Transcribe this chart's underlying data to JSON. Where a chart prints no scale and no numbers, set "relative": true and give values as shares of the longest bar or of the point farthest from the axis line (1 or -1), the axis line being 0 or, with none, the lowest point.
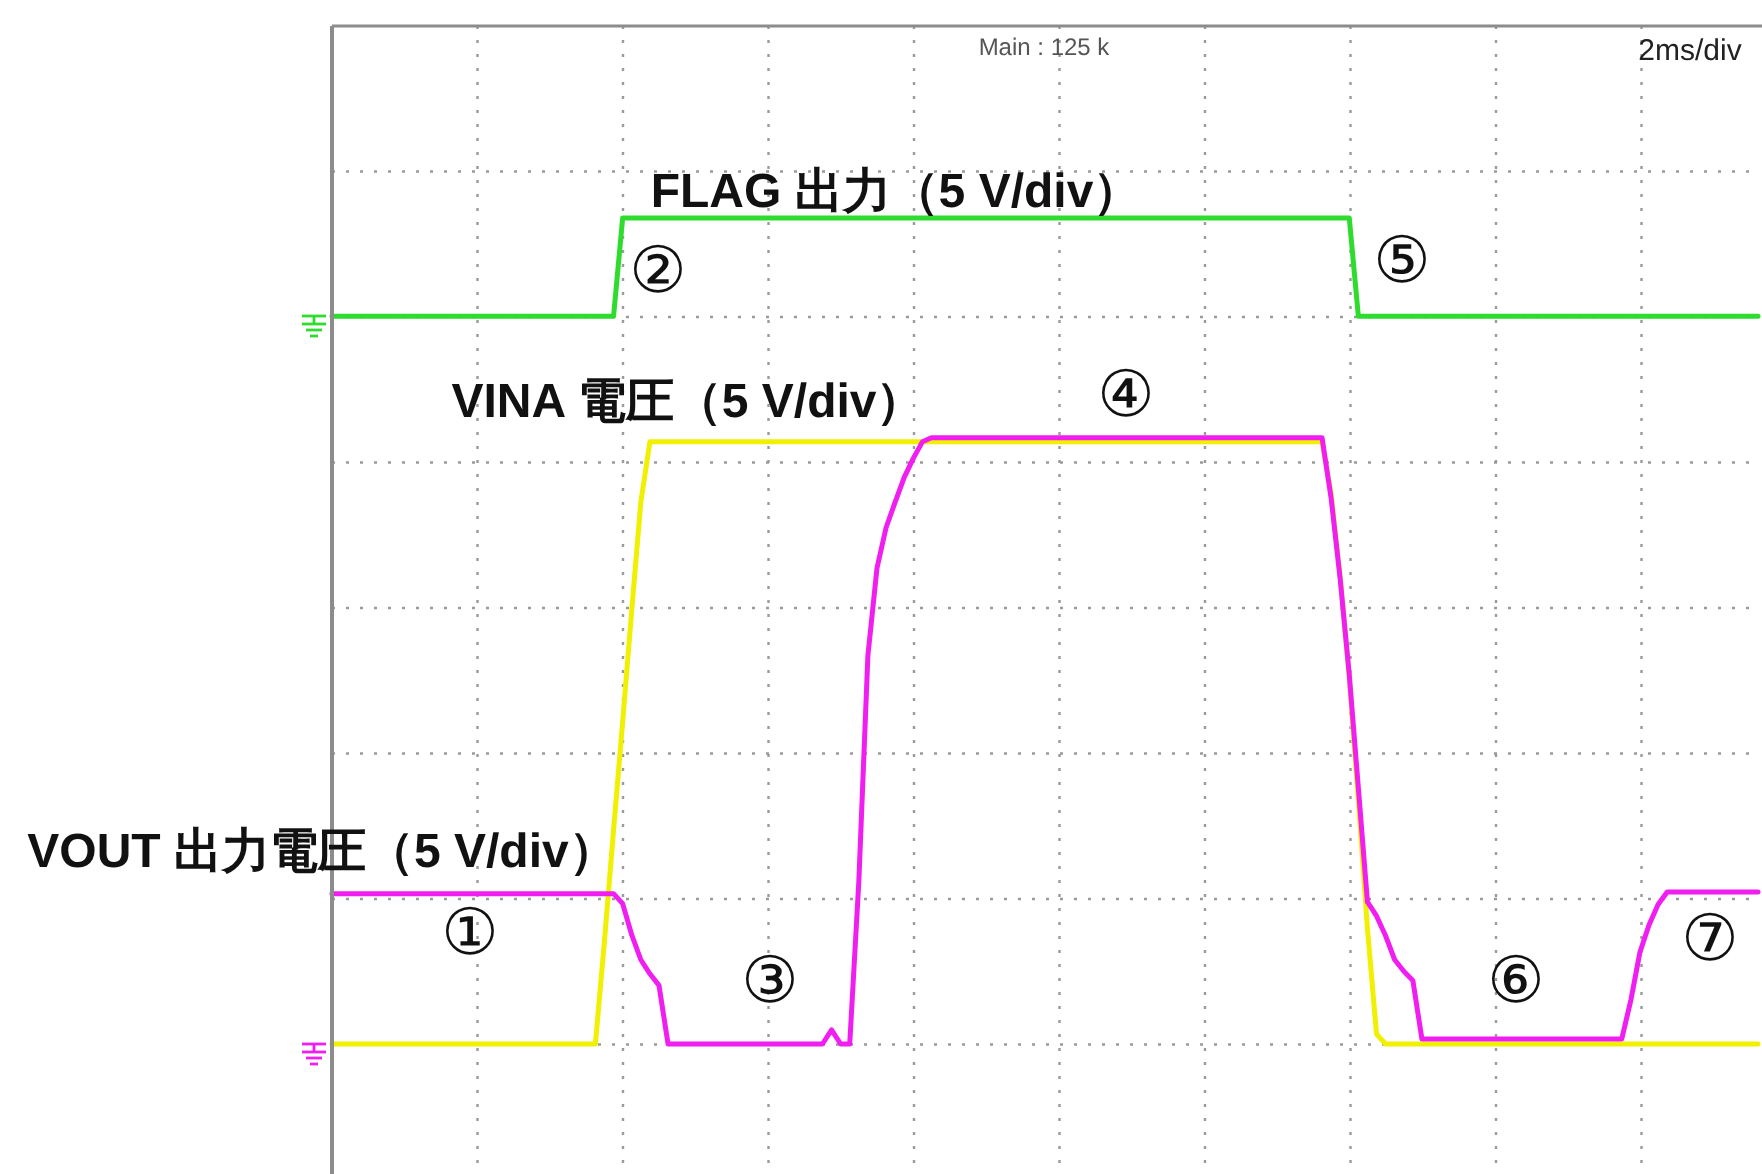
{
  "chart_data": {
    "type": "line",
    "relative": true,
    "grid": true,
    "tick_labels": false,
    "categories": [
      null,
      null,
      null,
      null,
      null,
      null,
      null,
      null,
      null,
      null,
      null,
      null,
      null,
      null,
      null,
      null,
      null,
      null,
      null,
      null,
      null,
      null,
      null,
      null,
      null,
      null,
      null,
      null,
      null,
      null,
      null,
      null,
      null,
      null,
      null,
      null,
      null,
      null,
      null,
      null,
      null,
      null,
      null,
      null,
      null,
      null,
      null,
      null,
      null,
      null,
      null,
      null,
      null,
      null,
      null,
      null,
      null,
      null,
      null,
      null,
      null,
      null,
      null,
      null,
      null,
      null,
      null,
      null,
      null,
      null,
      null,
      null,
      null,
      null,
      null,
      null,
      null,
      null,
      null,
      null,
      null,
      null,
      null,
      null,
      null,
      null,
      null,
      null,
      null,
      null,
      null,
      null,
      null,
      null,
      null,
      null,
      null,
      null,
      null,
      null,
      null,
      null,
      null,
      null,
      null,
      null,
      null,
      null,
      null,
      null,
      null,
      null,
      null,
      null,
      null,
      null,
      null,
      null,
      null,
      null,
      null,
      null,
      null,
      null,
      null,
      null,
      null,
      null,
      null,
      null,
      null,
      null,
      null,
      null,
      null,
      null,
      null,
      null,
      null,
      null,
      null,
      null,
      null,
      null,
      null,
      null,
      null,
      null,
      null,
      null,
      null,
      null,
      null,
      null,
      null,
      null,
      null,
      null
    ],
    "series": [
      {
        "name": "FLAG 出力（5 V/div）",
        "color": "#2edc2e",
        "values": [
          0.881,
          0.881,
          0.881,
          0.881,
          0.881,
          0.881,
          0.881,
          0.881,
          0.881,
          0.881,
          0.881,
          0.881,
          0.881,
          0.881,
          0.881,
          0.881,
          0.881,
          0.881,
          0.881,
          0.881,
          0.881,
          0.881,
          0.881,
          0.881,
          0.881,
          0.881,
          0.881,
          0.881,
          0.881,
          0.881,
          0.881,
          0.881,
          1,
          1,
          1,
          1,
          1,
          1,
          1,
          1,
          1,
          1,
          1,
          1,
          1,
          1,
          1,
          1,
          1,
          1,
          1,
          1,
          1,
          1,
          1,
          1,
          1,
          1,
          1,
          1,
          1,
          1,
          1,
          1,
          1,
          1,
          1,
          1,
          1,
          1,
          1,
          1,
          1,
          1,
          1,
          1,
          1,
          1,
          1,
          1,
          1,
          1,
          1,
          1,
          1,
          1,
          1,
          1,
          1,
          1,
          1,
          1,
          1,
          1,
          1,
          1,
          1,
          1,
          1,
          1,
          1,
          1,
          1,
          1,
          1,
          1,
          1,
          1,
          1,
          1,
          1,
          1,
          1,
          0.881,
          0.881,
          0.881,
          0.881,
          0.881,
          0.881,
          0.881,
          0.881,
          0.881,
          0.881,
          0.881,
          0.881,
          0.881,
          0.881,
          0.881,
          0.881,
          0.881,
          0.881,
          0.881,
          0.881,
          0.881,
          0.881,
          0.881,
          0.881,
          0.881,
          0.881,
          0.881,
          0.881,
          0.881,
          0.881,
          0.881,
          0.881,
          0.881,
          0.881,
          0.881,
          0.881,
          0.881,
          0.881,
          0.881,
          0.881,
          0.881,
          0.881,
          0.881,
          0.881,
          0.881
        ]
      },
      {
        "name": "VINA 電圧（5 V/div）",
        "color": "#f0f000",
        "values": [
          0,
          0,
          0,
          0,
          0,
          0,
          0,
          0,
          0,
          0,
          0,
          0,
          0,
          0,
          0,
          0,
          0,
          0,
          0,
          0,
          0,
          0,
          0,
          0,
          0,
          0,
          0,
          0,
          0,
          0,
          0.125,
          0.259,
          0.39,
          0.525,
          0.656,
          0.729,
          0.729,
          0.729,
          0.729,
          0.729,
          0.729,
          0.729,
          0.729,
          0.729,
          0.729,
          0.729,
          0.729,
          0.729,
          0.729,
          0.729,
          0.729,
          0.729,
          0.729,
          0.729,
          0.729,
          0.729,
          0.729,
          0.729,
          0.729,
          0.729,
          0.729,
          0.729,
          0.729,
          0.729,
          0.729,
          0.729,
          0.729,
          0.729,
          0.729,
          0.729,
          0.729,
          0.729,
          0.729,
          0.729,
          0.729,
          0.729,
          0.729,
          0.729,
          0.729,
          0.729,
          0.729,
          0.729,
          0.729,
          0.729,
          0.729,
          0.729,
          0.729,
          0.729,
          0.729,
          0.729,
          0.729,
          0.729,
          0.729,
          0.729,
          0.729,
          0.729,
          0.729,
          0.729,
          0.729,
          0.729,
          0.729,
          0.729,
          0.729,
          0.729,
          0.729,
          0.729,
          0.729,
          0.729,
          0.729,
          0.729,
          0.666,
          0.565,
          0.444,
          0.295,
          0.14,
          0.012,
          0,
          0,
          0,
          0,
          0,
          0,
          0,
          0,
          0,
          0,
          0,
          0,
          0,
          0,
          0,
          0,
          0,
          0,
          0,
          0,
          0,
          0,
          0,
          0,
          0,
          0,
          0,
          0,
          0,
          0,
          0,
          0,
          0,
          0,
          0,
          0,
          0,
          0,
          0,
          0,
          0,
          0
        ]
      },
      {
        "name": "VOUT 出力電圧（5 V/div）",
        "color": "#f01ef0",
        "values": [
          0.182,
          0.182,
          0.182,
          0.182,
          0.182,
          0.182,
          0.182,
          0.182,
          0.182,
          0.182,
          0.182,
          0.182,
          0.182,
          0.182,
          0.182,
          0.182,
          0.182,
          0.182,
          0.182,
          0.182,
          0.182,
          0.182,
          0.182,
          0.182,
          0.182,
          0.182,
          0.182,
          0.182,
          0.182,
          0.182,
          0.182,
          0.182,
          0.17,
          0.132,
          0.102,
          0.085,
          0.071,
          0,
          0,
          0,
          0,
          0,
          0,
          0,
          0,
          0,
          0,
          0,
          0,
          0,
          0,
          0,
          0,
          0,
          0,
          0.017,
          0,
          0,
          0.196,
          0.47,
          0.576,
          0.625,
          0.656,
          0.686,
          0.709,
          0.729,
          0.734,
          0.734,
          0.734,
          0.734,
          0.734,
          0.734,
          0.734,
          0.734,
          0.734,
          0.734,
          0.734,
          0.734,
          0.734,
          0.734,
          0.734,
          0.734,
          0.734,
          0.734,
          0.734,
          0.734,
          0.734,
          0.734,
          0.734,
          0.734,
          0.734,
          0.734,
          0.734,
          0.734,
          0.734,
          0.734,
          0.734,
          0.734,
          0.734,
          0.734,
          0.734,
          0.734,
          0.734,
          0.734,
          0.734,
          0.734,
          0.734,
          0.734,
          0.734,
          0.734,
          0.661,
          0.563,
          0.447,
          0.31,
          0.172,
          0.155,
          0.131,
          0.102,
          0.088,
          0.077,
          0.006,
          0.006,
          0.006,
          0.006,
          0.006,
          0.006,
          0.006,
          0.006,
          0.006,
          0.006,
          0.006,
          0.006,
          0.006,
          0.006,
          0.006,
          0.006,
          0.006,
          0.006,
          0.006,
          0.006,
          0.006,
          0.006,
          0.006,
          0.053,
          0.111,
          0.144,
          0.169,
          0.184,
          0.184,
          0.184,
          0.184,
          0.184,
          0.184,
          0.184,
          0.184,
          0.184,
          0.184,
          0.184
        ]
      }
    ],
    "annotations": [
      "Main : 125 k",
      "2ms/div",
      "①",
      "②",
      "③",
      "④",
      "⑤",
      "⑥",
      "⑦"
    ]
  }
}
